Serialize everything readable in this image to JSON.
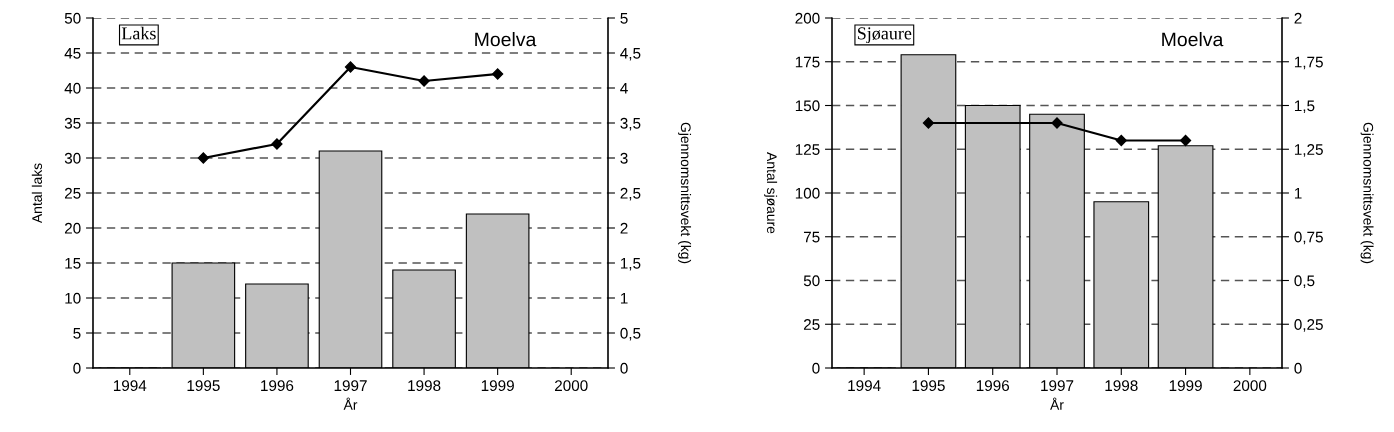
{
  "chart_data": [
    {
      "type": "bar",
      "categories": [
        "1994",
        "1995",
        "1996",
        "1997",
        "1998",
        "1999",
        "2000"
      ],
      "xlabel": "År",
      "ylabel": "Antal laks",
      "y2label": "Gjennomsnittsvekt (kg)",
      "annotations": [
        "Laks",
        "Moelva"
      ],
      "ylim": [
        0,
        50
      ],
      "yticks": [
        0,
        5,
        10,
        15,
        20,
        25,
        30,
        35,
        40,
        45,
        50
      ],
      "y2lim": [
        0,
        5
      ],
      "y2ticks": [
        0,
        {
          "value": 0.5,
          "label": "0,5"
        },
        1,
        {
          "value": 1.5,
          "label": "1,5"
        },
        2,
        {
          "value": 2.5,
          "label": "2,5"
        },
        3,
        {
          "value": 3.5,
          "label": "3,5"
        },
        4,
        {
          "value": 4.5,
          "label": "4,5"
        },
        5
      ],
      "grid": "y",
      "series": [
        {
          "color": "#c0c0c0",
          "values": [
            0,
            15,
            12,
            31,
            14,
            22,
            null
          ]
        },
        {
          "type": "line",
          "axis": "y2",
          "color": "#000000",
          "marker": "diamond",
          "line_style": "solid",
          "values": [
            null,
            3.0,
            3.2,
            4.3,
            4.1,
            4.2,
            null
          ]
        }
      ]
    },
    {
      "type": "bar",
      "categories": [
        "1994",
        "1995",
        "1996",
        "1997",
        "1998",
        "1999",
        "2000"
      ],
      "xlabel": "År",
      "ylabel": "Antal sjøaure",
      "y2label": "Gjennomsnittsvekt (kg)",
      "annotations": [
        "Sjøaure",
        "Moelva"
      ],
      "ylim": [
        0,
        200
      ],
      "yticks": [
        0,
        25,
        50,
        75,
        100,
        125,
        150,
        175,
        200
      ],
      "y2lim": [
        0,
        2
      ],
      "y2ticks": [
        0,
        {
          "value": 0.25,
          "label": "0,25"
        },
        {
          "value": 0.5,
          "label": "0,5"
        },
        {
          "value": 0.75,
          "label": "0,75"
        },
        1,
        {
          "value": 1.25,
          "label": "1,25"
        },
        {
          "value": 1.5,
          "label": "1,5"
        },
        {
          "value": 1.75,
          "label": "1,75"
        },
        2
      ],
      "grid": "y",
      "series": [
        {
          "color": "#c0c0c0",
          "values": [
            0,
            179,
            150,
            145,
            95,
            127,
            null
          ]
        },
        {
          "type": "line",
          "axis": "y2",
          "color": "#000000",
          "marker": "diamond",
          "line_style": "solid",
          "values": [
            null,
            1.4,
            null,
            1.4,
            1.3,
            1.3,
            null
          ]
        }
      ]
    }
  ]
}
